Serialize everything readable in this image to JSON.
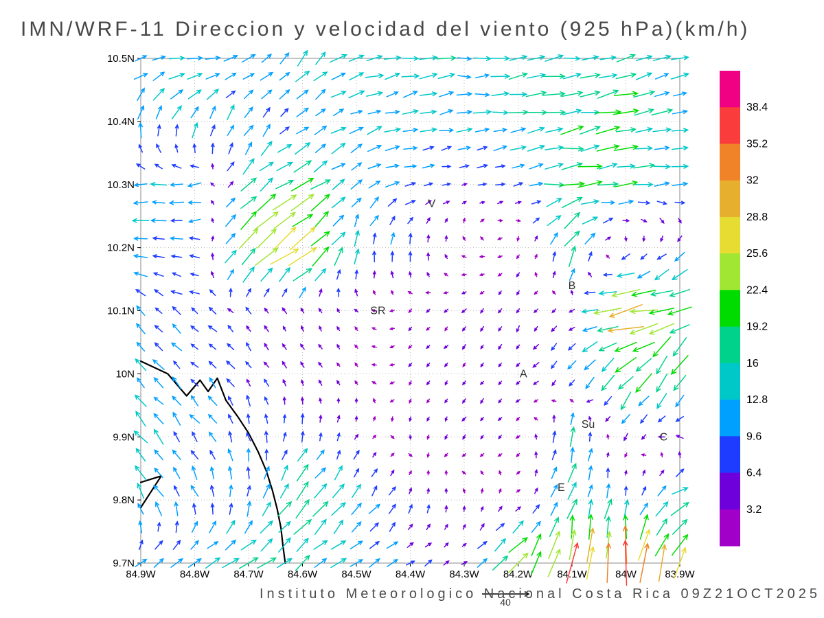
{
  "title": "IMN/WRF-11 Direccion y velocidad del viento (925 hPa)(km/h)",
  "footer": {
    "credit": "Instituto Meteorologico Nacional Costa Rica 09Z21OCT2025",
    "reference_vector": {
      "label": "40",
      "value_kmh": 40
    }
  },
  "chart_data": {
    "type": "quiver",
    "title": "IMN/WRF-11 Direccion y velocidad del viento (925 hPa)(km/h)",
    "units": "km/h",
    "pressure_level": "925 hPa",
    "grid": true,
    "x_axis": {
      "range_degW": [
        84.9,
        83.9
      ],
      "ticks": [
        84.9,
        84.8,
        84.7,
        84.6,
        84.5,
        84.4,
        84.3,
        84.2,
        84.1,
        84.0,
        83.9
      ],
      "tick_labels": [
        "84.9W",
        "84.8W",
        "84.7W",
        "84.6W",
        "84.5W",
        "84.4W",
        "84.3W",
        "84.2W",
        "84.1W",
        "84W",
        "83.9W"
      ]
    },
    "y_axis": {
      "range_degN": [
        9.7,
        10.5
      ],
      "ticks": [
        10.5,
        10.4,
        10.3,
        10.2,
        10.1,
        10.0,
        9.9,
        9.8,
        9.7
      ],
      "tick_labels": [
        "10.5N",
        "10.4N",
        "10.3N",
        "10.2N",
        "10.1N",
        "10N",
        "9.9N",
        "9.8N",
        "9.7N"
      ]
    },
    "colorbar": {
      "position": "right",
      "units": "km/h",
      "levels": [
        3.2,
        6.4,
        9.6,
        12.8,
        16,
        19.2,
        22.4,
        25.6,
        28.8,
        32,
        35.2,
        38.4
      ],
      "colors_low_to_high": [
        "#a000c8",
        "#6e00dc",
        "#1e3cff",
        "#00a0ff",
        "#00c8c8",
        "#00d28c",
        "#00dc00",
        "#a0e632",
        "#e6dc32",
        "#e6af2d",
        "#f08228",
        "#fa3c3c",
        "#f00082"
      ]
    },
    "stations": [
      {
        "label": "V",
        "lonW": 84.36,
        "latN": 10.27
      },
      {
        "label": "SR",
        "lonW": 84.46,
        "latN": 10.1
      },
      {
        "label": "B",
        "lonW": 84.1,
        "latN": 10.14
      },
      {
        "label": "A",
        "lonW": 84.19,
        "latN": 10.0
      },
      {
        "label": "Su",
        "lonW": 84.07,
        "latN": 9.92
      },
      {
        "label": "C",
        "lonW": 83.93,
        "latN": 9.9
      },
      {
        "label": "E",
        "lonW": 84.12,
        "latN": 9.82
      }
    ],
    "coastlines": [
      [
        [
          84.9,
          10.02
        ],
        [
          84.85,
          10.0
        ],
        [
          84.815,
          9.965
        ],
        [
          84.79,
          9.99
        ],
        [
          84.775,
          9.972
        ],
        [
          84.758,
          9.993
        ],
        [
          84.742,
          9.958
        ],
        [
          84.72,
          9.932
        ],
        [
          84.7,
          9.906
        ],
        [
          84.682,
          9.876
        ],
        [
          84.667,
          9.846
        ],
        [
          84.656,
          9.816
        ],
        [
          84.647,
          9.786
        ],
        [
          84.64,
          9.756
        ],
        [
          84.636,
          9.726
        ],
        [
          84.632,
          9.7
        ]
      ],
      [
        [
          84.9,
          9.828
        ],
        [
          84.862,
          9.838
        ],
        [
          84.9,
          9.788
        ]
      ]
    ],
    "wind_field": {
      "grid_lonW": [
        84.9,
        84.8,
        84.7,
        84.6,
        84.5,
        84.4,
        84.3,
        84.2,
        84.1,
        84.0,
        83.9
      ],
      "grid_latN": [
        10.5,
        10.4,
        10.3,
        10.2,
        10.1,
        10.0,
        9.9,
        9.8,
        9.7
      ],
      "u_kmh": [
        [
          12,
          13,
          10,
          8,
          12,
          13,
          13,
          14,
          14,
          13,
          12
        ],
        [
          3,
          6,
          5,
          8,
          10,
          11,
          12,
          14,
          17,
          18,
          13
        ],
        [
          -12,
          -10,
          10,
          16,
          8,
          10,
          4,
          8,
          18,
          16,
          11
        ],
        [
          -10,
          -8,
          18,
          22,
          2,
          0,
          -2,
          -2,
          8,
          -2,
          -5
        ],
        [
          -6,
          -6,
          -4,
          -2,
          -2,
          -2,
          -3,
          -2,
          -4,
          -27,
          -18
        ],
        [
          -8,
          -6,
          -4,
          -2,
          -2,
          -2,
          -2,
          -3,
          -6,
          -14,
          -10
        ],
        [
          -8,
          -6,
          -2,
          2,
          2,
          0,
          -2,
          -2,
          3,
          -2,
          -6
        ],
        [
          -6,
          -4,
          2,
          12,
          8,
          2,
          0,
          2,
          4,
          2,
          14
        ],
        [
          8,
          12,
          14,
          10,
          10,
          6,
          4,
          16,
          4,
          2,
          10
        ]
      ],
      "v_kmh": [
        [
          3,
          2,
          6,
          10,
          4,
          2,
          0,
          2,
          2,
          3,
          3
        ],
        [
          12,
          12,
          9,
          6,
          5,
          3,
          2,
          2,
          3,
          4,
          2
        ],
        [
          0,
          -2,
          10,
          10,
          6,
          2,
          1,
          2,
          2,
          2,
          0
        ],
        [
          2,
          0,
          14,
          14,
          12,
          8,
          2,
          -2,
          16,
          -4,
          -6
        ],
        [
          6,
          4,
          4,
          4,
          2,
          -2,
          -3,
          -4,
          -2,
          -5,
          -8
        ],
        [
          8,
          6,
          6,
          4,
          2,
          -2,
          -3,
          -3,
          -8,
          -14,
          -16
        ],
        [
          10,
          8,
          8,
          8,
          4,
          -3,
          -3,
          -2,
          15,
          -6,
          2
        ],
        [
          10,
          10,
          10,
          14,
          10,
          6,
          4,
          2,
          12,
          10,
          8
        ],
        [
          6,
          6,
          8,
          10,
          6,
          4,
          2,
          14,
          30,
          32,
          22
        ]
      ]
    },
    "reference_vector_kmh": 40
  }
}
